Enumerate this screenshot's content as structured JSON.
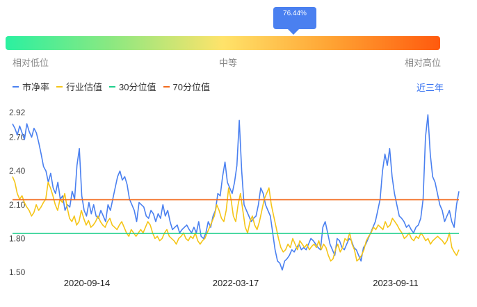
{
  "indicator": {
    "current_percentile": "76.44%",
    "scale_low": "相对低位",
    "scale_mid": "中等",
    "scale_high": "相对高位"
  },
  "legend": {
    "pe": "市净率",
    "industry": "行业估值",
    "p30": "30分位值",
    "p70": "70分位值"
  },
  "range_selector": "近三年",
  "colors": {
    "pe": "#4a80f0",
    "industry": "#f5c518",
    "p30": "#1ecf8c",
    "p70": "#f26b1d"
  },
  "chart_data": {
    "type": "line",
    "ylim": [
      1.5,
      2.92
    ],
    "yticks": [
      "2.92",
      "2.70",
      "2.40",
      "2.10",
      "1.80",
      "1.50"
    ],
    "xticks": [
      "2020-09-14",
      "2022-03-17",
      "2023-09-11"
    ],
    "thresholds": {
      "p30": 1.845,
      "p70": 2.145
    },
    "series": [
      {
        "name": "市净率",
        "key": "pe",
        "values": [
          2.82,
          2.78,
          2.72,
          2.8,
          2.74,
          2.68,
          2.82,
          2.75,
          2.7,
          2.78,
          2.74,
          2.65,
          2.55,
          2.44,
          2.4,
          2.3,
          2.38,
          2.25,
          2.2,
          2.3,
          2.15,
          2.18,
          2.05,
          2.1,
          2.08,
          2.22,
          2.15,
          2.45,
          2.6,
          2.18,
          2.05,
          2.0,
          2.12,
          2.02,
          2.1,
          2.0,
          1.98,
          2.05,
          2.0,
          1.95,
          2.1,
          2.05,
          2.15,
          2.25,
          2.35,
          2.4,
          2.32,
          2.35,
          2.28,
          2.15,
          2.1,
          2.05,
          1.95,
          2.12,
          2.1,
          2.08,
          2.0,
          1.98,
          2.05,
          2.02,
          1.95,
          2.02,
          1.98,
          2.1,
          2.0,
          2.05,
          1.95,
          1.88,
          1.9,
          1.92,
          1.85,
          1.88,
          1.9,
          1.92,
          1.88,
          1.85,
          1.9,
          1.85,
          1.95,
          1.82,
          1.8,
          1.85,
          1.95,
          1.9,
          2.0,
          2.05,
          2.2,
          2.18,
          2.35,
          2.48,
          2.3,
          2.25,
          2.2,
          2.3,
          2.45,
          2.85,
          2.4,
          2.1,
          2.05,
          2.0,
          1.95,
          1.98,
          2.0,
          2.1,
          2.25,
          2.2,
          2.1,
          2.05,
          2.0,
          1.85,
          1.7,
          1.6,
          1.58,
          1.52,
          1.6,
          1.62,
          1.65,
          1.7,
          1.68,
          1.72,
          1.75,
          1.7,
          1.72,
          1.7,
          1.75,
          1.8,
          1.78,
          1.75,
          1.72,
          1.7,
          1.9,
          1.95,
          1.85,
          1.75,
          1.7,
          1.65,
          1.8,
          1.78,
          1.72,
          1.7,
          1.75,
          1.8,
          1.78,
          1.72,
          1.7,
          1.65,
          1.6,
          1.72,
          1.75,
          1.8,
          1.85,
          1.9,
          1.95,
          2.05,
          2.15,
          2.4,
          2.55,
          2.45,
          2.6,
          2.35,
          2.2,
          2.1,
          2.0,
          1.98,
          1.95,
          1.9,
          1.92,
          1.88,
          1.85,
          1.9,
          1.92,
          1.98,
          2.15,
          2.7,
          2.9,
          2.55,
          2.35,
          2.3,
          2.2,
          2.1,
          2.05,
          1.95,
          2.0,
          2.05,
          1.95,
          1.9,
          2.1,
          2.22
        ]
      },
      {
        "name": "行业估值",
        "key": "industry",
        "values": [
          2.35,
          2.3,
          2.2,
          2.15,
          2.18,
          2.12,
          2.08,
          2.05,
          2.0,
          2.03,
          2.1,
          2.05,
          2.08,
          2.12,
          2.15,
          2.3,
          2.25,
          2.18,
          2.1,
          2.05,
          2.15,
          2.12,
          2.2,
          2.08,
          1.98,
          1.95,
          2.0,
          1.92,
          1.95,
          2.05,
          1.98,
          1.92,
          1.96,
          1.9,
          1.92,
          1.95,
          2.0,
          1.95,
          1.92,
          1.9,
          1.95,
          1.98,
          1.92,
          1.9,
          1.88,
          1.92,
          1.95,
          1.9,
          1.85,
          1.82,
          1.88,
          1.85,
          1.82,
          1.85,
          1.88,
          1.85,
          1.9,
          1.95,
          1.92,
          1.85,
          1.8,
          1.82,
          1.78,
          1.8,
          1.85,
          1.88,
          1.82,
          1.8,
          1.78,
          1.75,
          1.8,
          1.82,
          1.85,
          1.8,
          1.78,
          1.82,
          1.8,
          1.85,
          1.78,
          1.75,
          1.78,
          1.8,
          1.85,
          1.9,
          1.95,
          2.0,
          2.1,
          2.05,
          1.98,
          1.95,
          2.05,
          2.25,
          2.15,
          2.0,
          1.95,
          2.1,
          2.2,
          2.05,
          1.9,
          1.85,
          1.95,
          2.0,
          1.92,
          1.88,
          1.95,
          2.05,
          2.15,
          2.2,
          2.25,
          2.1,
          2.0,
          1.9,
          1.8,
          1.72,
          1.68,
          1.7,
          1.75,
          1.72,
          1.8,
          1.75,
          1.7,
          1.78,
          1.75,
          1.72,
          1.75,
          1.7,
          1.73,
          1.75,
          1.72,
          1.78,
          1.7,
          1.75,
          1.72,
          1.65,
          1.6,
          1.62,
          1.7,
          1.75,
          1.68,
          1.72,
          1.8,
          1.78,
          1.85,
          1.75,
          1.7,
          1.6,
          1.62,
          1.65,
          1.7,
          1.78,
          1.82,
          1.85,
          1.9,
          1.88,
          1.92,
          1.9,
          1.88,
          1.95,
          1.9,
          1.92,
          1.98,
          1.95,
          1.92,
          1.88,
          1.85,
          1.8,
          1.82,
          1.85,
          1.8,
          1.78,
          1.82,
          1.8,
          1.85,
          1.82,
          1.78,
          1.8,
          1.75,
          1.78,
          1.8,
          1.82,
          1.8,
          1.78,
          1.75,
          1.78,
          1.85,
          1.72,
          1.68,
          1.65,
          1.7
        ]
      }
    ]
  }
}
